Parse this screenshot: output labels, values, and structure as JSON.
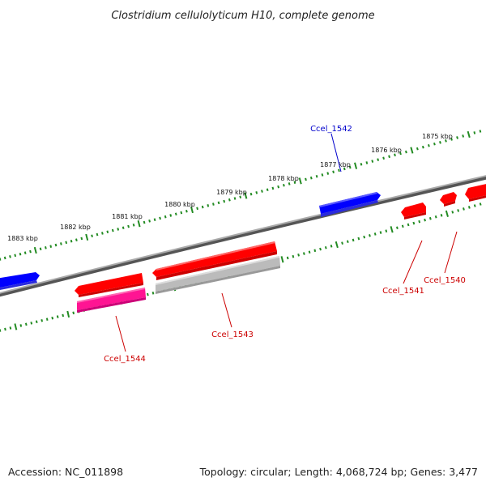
{
  "title": "Clostridium cellulolyticum H10, complete genome",
  "accession": "Accession: NC_011898",
  "summary": "Topology: circular; Length: 4,068,724 bp; Genes: 3,477",
  "ticks": [
    "1875 kbp",
    "1876 kbp",
    "1877 kbp",
    "1878 kbp",
    "1879 kbp",
    "1880 kbp",
    "1881 kbp",
    "1882 kbp",
    "1883 kbp"
  ],
  "genes": [
    {
      "name": "Ccel_1540",
      "strand": "minus",
      "color": "#ff0000"
    },
    {
      "name": "Ccel_1541",
      "strand": "minus",
      "color": "#ff0000"
    },
    {
      "name": "Ccel_1542",
      "strand": "plus",
      "color": "#0000ff"
    },
    {
      "name": "Ccel_1543",
      "strand": "minus",
      "color": "#bbbbbb"
    },
    {
      "name": "Ccel_1544",
      "strand": "minus",
      "color": "#ff00aa"
    }
  ],
  "colors": {
    "backbone": "#777777",
    "tick_mark": "#228b22",
    "label_blue": "#0000cc",
    "label_red": "#cc0000"
  }
}
